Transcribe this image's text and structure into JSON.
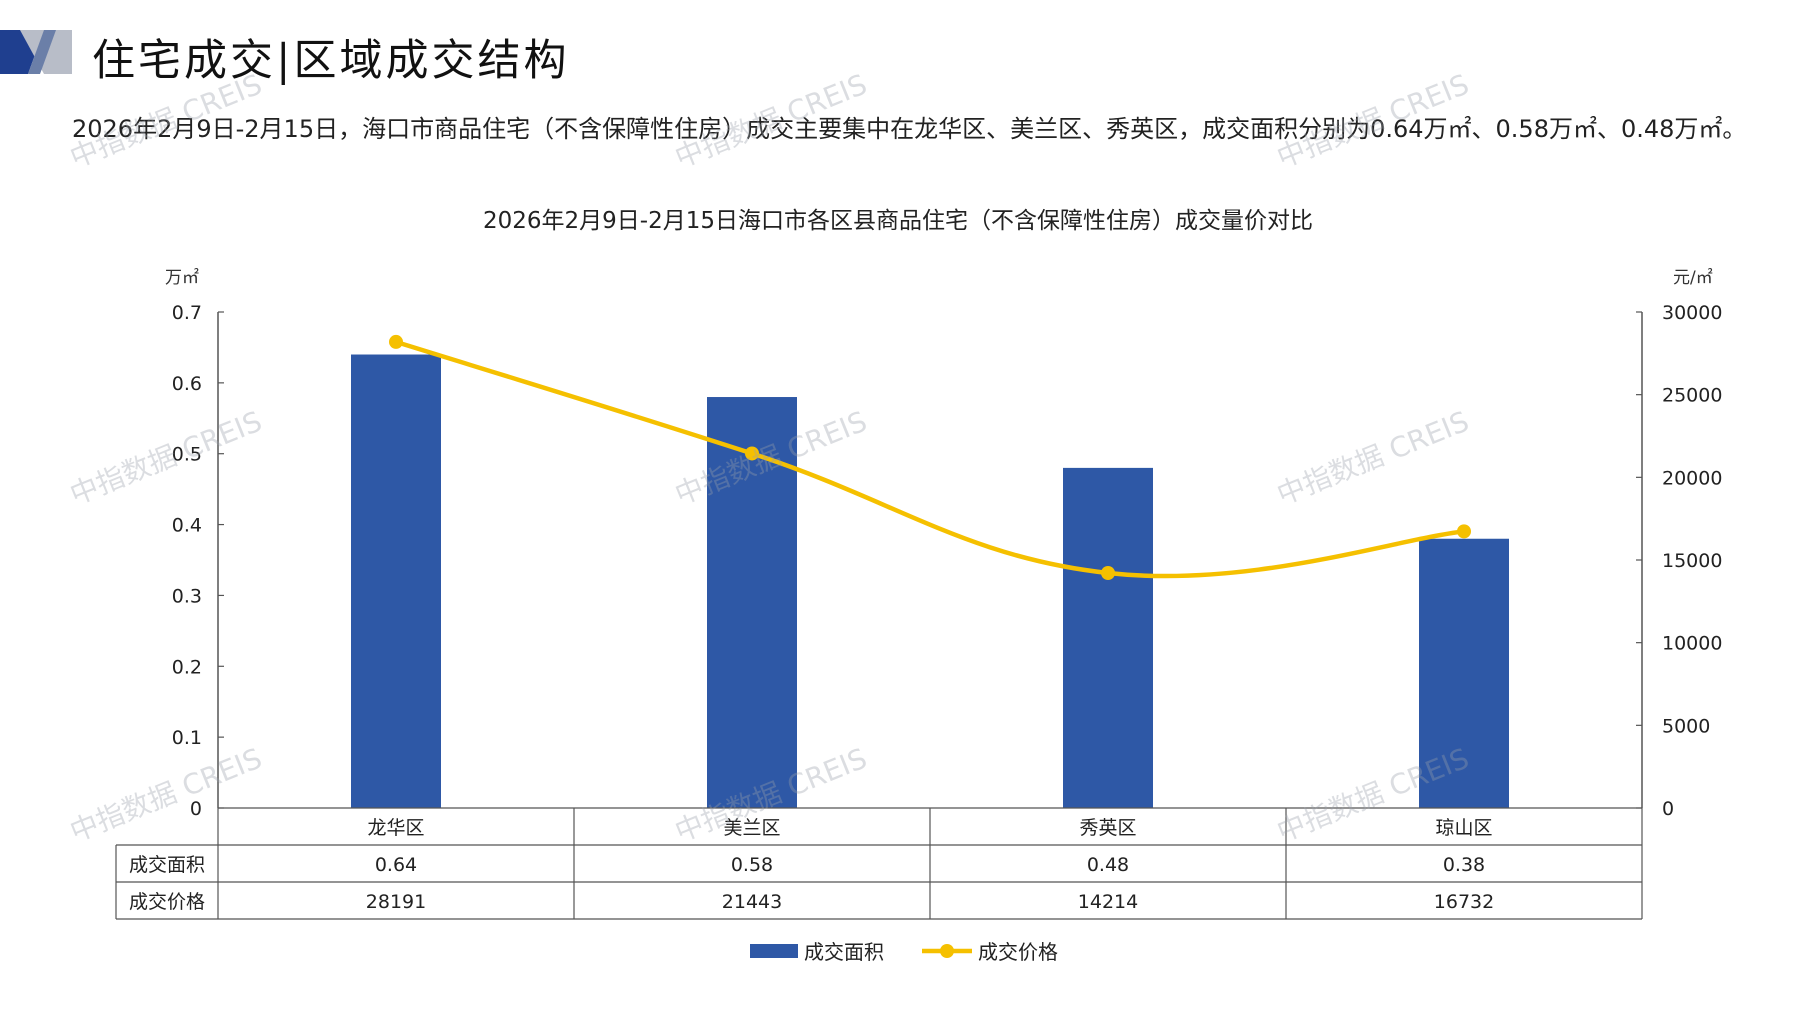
{
  "header": {
    "title": "住宅成交|区域成交结构"
  },
  "summary_text": "2026年2月9日-2月15日，海口市商品住宅（不含保障性住房）成交主要集中在龙华区、美兰区、秀英区，成交面积分别为0.64万㎡、0.58万㎡、0.48万㎡。",
  "watermark": "中指数据 CREIS",
  "colors": {
    "bar": "#2E58A6",
    "line": "#F5C000",
    "logo_dark": "#1F3F8F",
    "logo_light": "#B8BDC8"
  },
  "chart_data": {
    "type": "bar",
    "title": "2026年2月9日-2月15日海口市各区县商品住宅（不含保障性住房）成交量价对比",
    "categories": [
      "龙华区",
      "美兰区",
      "秀英区",
      "琼山区"
    ],
    "series": [
      {
        "name": "成交面积",
        "type": "bar",
        "axis": "left",
        "values": [
          0.64,
          0.58,
          0.48,
          0.38
        ]
      },
      {
        "name": "成交价格",
        "type": "line",
        "axis": "right",
        "values": [
          28191,
          21443,
          14214,
          16732
        ]
      }
    ],
    "left_axis": {
      "unit": "万㎡",
      "ylim": [
        0,
        0.7
      ],
      "ticks": [
        "0",
        "0.1",
        "0.2",
        "0.3",
        "0.4",
        "0.5",
        "0.6",
        "0.7"
      ]
    },
    "right_axis": {
      "unit": "元/㎡",
      "ylim": [
        0,
        30000
      ],
      "ticks": [
        "0",
        "5000",
        "10000",
        "15000",
        "20000",
        "25000",
        "30000"
      ]
    },
    "data_table": {
      "row_labels": [
        "成交面积",
        "成交价格"
      ],
      "rows": [
        [
          "0.64",
          "0.58",
          "0.48",
          "0.38"
        ],
        [
          "28191",
          "21443",
          "14214",
          "16732"
        ]
      ]
    },
    "legend_position": "bottom",
    "grid": false
  }
}
